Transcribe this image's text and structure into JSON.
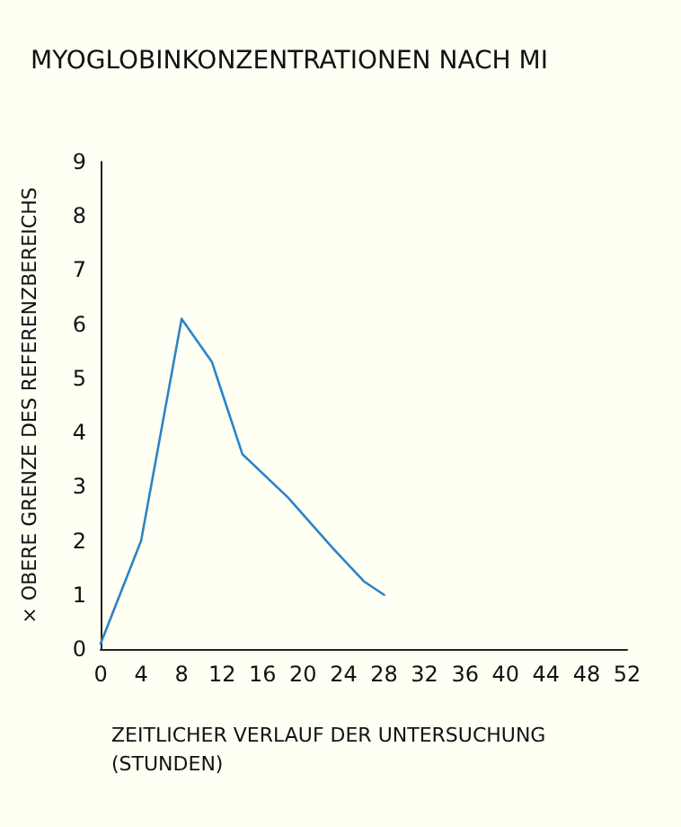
{
  "chart_data": {
    "type": "line",
    "title": "MYOGLOBINKONZENTRATIONEN NACH MI",
    "xlabel": "ZEITLICHER VERLAUF DER UNTERSUCHUNG\n(STUNDEN)",
    "ylabel": "× OBERE GRENZE DES REFERENZBEREICHS",
    "x": [
      0,
      4,
      8,
      11,
      14,
      18.5,
      23,
      26,
      28
    ],
    "series": [
      {
        "color": "#2a84c8",
        "values": [
          0.1,
          2.0,
          6.1,
          5.3,
          3.6,
          2.8,
          1.85,
          1.25,
          1.0
        ]
      }
    ],
    "xlim": [
      0,
      52
    ],
    "xticks": [
      0,
      4,
      8,
      12,
      16,
      20,
      24,
      28,
      32,
      36,
      40,
      44,
      48,
      52
    ],
    "ylim": [
      0,
      9
    ],
    "yticks": [
      0,
      1,
      2,
      3,
      4,
      5,
      6,
      7,
      8,
      9
    ],
    "grid": false,
    "marker": "none",
    "line_style": "solid"
  }
}
